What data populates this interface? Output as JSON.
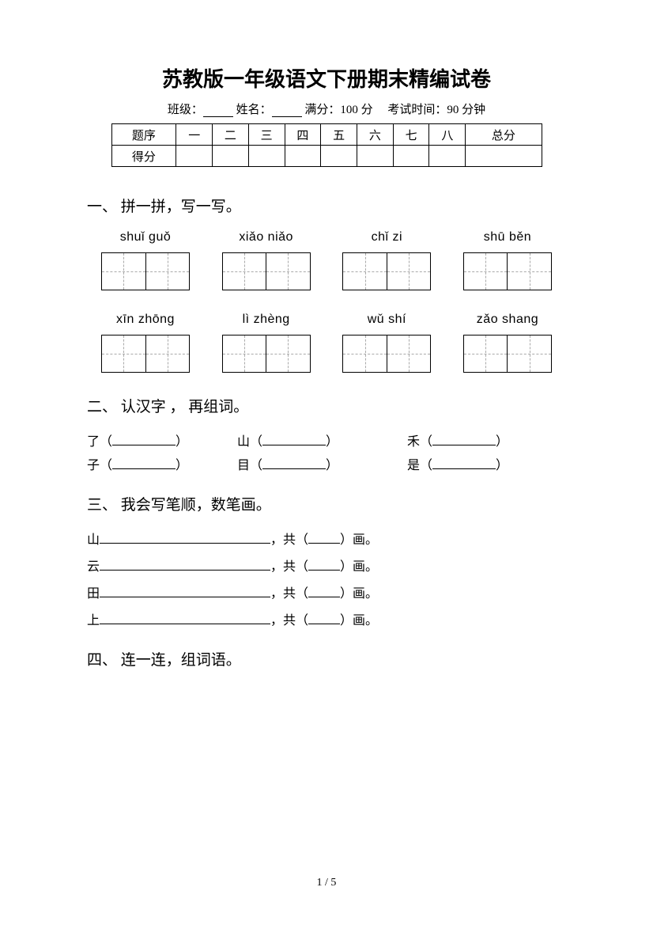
{
  "title": "苏教版一年级语文下册期末精编试卷",
  "info": {
    "class_label": "班级：",
    "name_label": "姓名：",
    "full_score_label": "满分：",
    "full_score_value": "100 分",
    "time_label": "考试时间：",
    "time_value": "90 分钟"
  },
  "score_table": {
    "row1": [
      "题序",
      "一",
      "二",
      "三",
      "四",
      "五",
      "六",
      "七",
      "八",
      "总分"
    ],
    "row2_label": "得分"
  },
  "q1": {
    "title": "一、 拼一拼，写一写。",
    "row1": [
      "shuǐ guǒ",
      "xiǎo niǎo",
      "chǐ zi",
      "shū běn"
    ],
    "row2": [
      "xīn zhōng",
      "lì zhèng",
      "wǔ shí",
      "zǎo shang"
    ]
  },
  "q2": {
    "title": "二、 认汉字 ， 再组词。",
    "row1": [
      "了",
      "山",
      "禾"
    ],
    "row2": [
      "子",
      "目",
      "是"
    ]
  },
  "q3": {
    "title": "三、 我会写笔顺，数笔画。",
    "items": [
      "山",
      "云",
      "田",
      "上"
    ],
    "suffix1": "，共（",
    "suffix2": "）画。"
  },
  "q4": {
    "title": "四、 连一连，组词语。"
  },
  "footer": "1  /  5"
}
